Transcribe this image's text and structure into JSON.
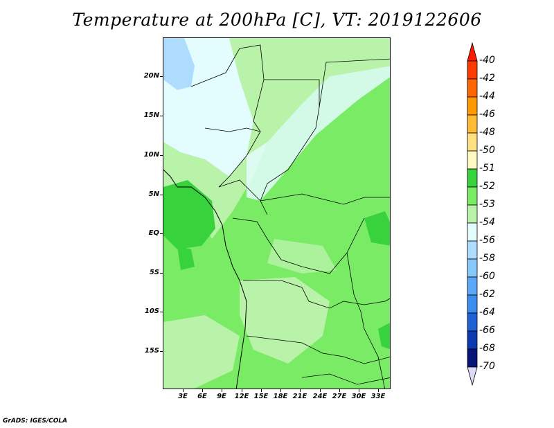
{
  "title": "Temperature at 200hPa [C], VT: 2019122606",
  "credit": "GrADS: IGES/COLA",
  "map": {
    "lat_labels": [
      "20N",
      "15N",
      "10N",
      "5N",
      "EQ",
      "5S",
      "10S",
      "15S"
    ],
    "lon_labels": [
      "3E",
      "6E",
      "9E",
      "12E",
      "15E",
      "18E",
      "21E",
      "24E",
      "27E",
      "30E",
      "33E"
    ]
  },
  "colorbar": {
    "labels": [
      "-40",
      "-42",
      "-44",
      "-46",
      "-48",
      "-50",
      "-51",
      "-52",
      "-53",
      "-54",
      "-56",
      "-58",
      "-60",
      "-62",
      "-64",
      "-66",
      "-68",
      "-70"
    ],
    "colors": [
      "#ff1a00",
      "#ff3b00",
      "#ff6600",
      "#ff9900",
      "#ffbb33",
      "#ffe080",
      "#fff9c2",
      "#37d23c",
      "#79eb64",
      "#b9f2a9",
      "#e3fdfe",
      "#aedcfe",
      "#87c8fb",
      "#5aa8f7",
      "#3b8def",
      "#1f62d6",
      "#0b3ab0",
      "#061577",
      "#dbdbf5"
    ]
  }
}
